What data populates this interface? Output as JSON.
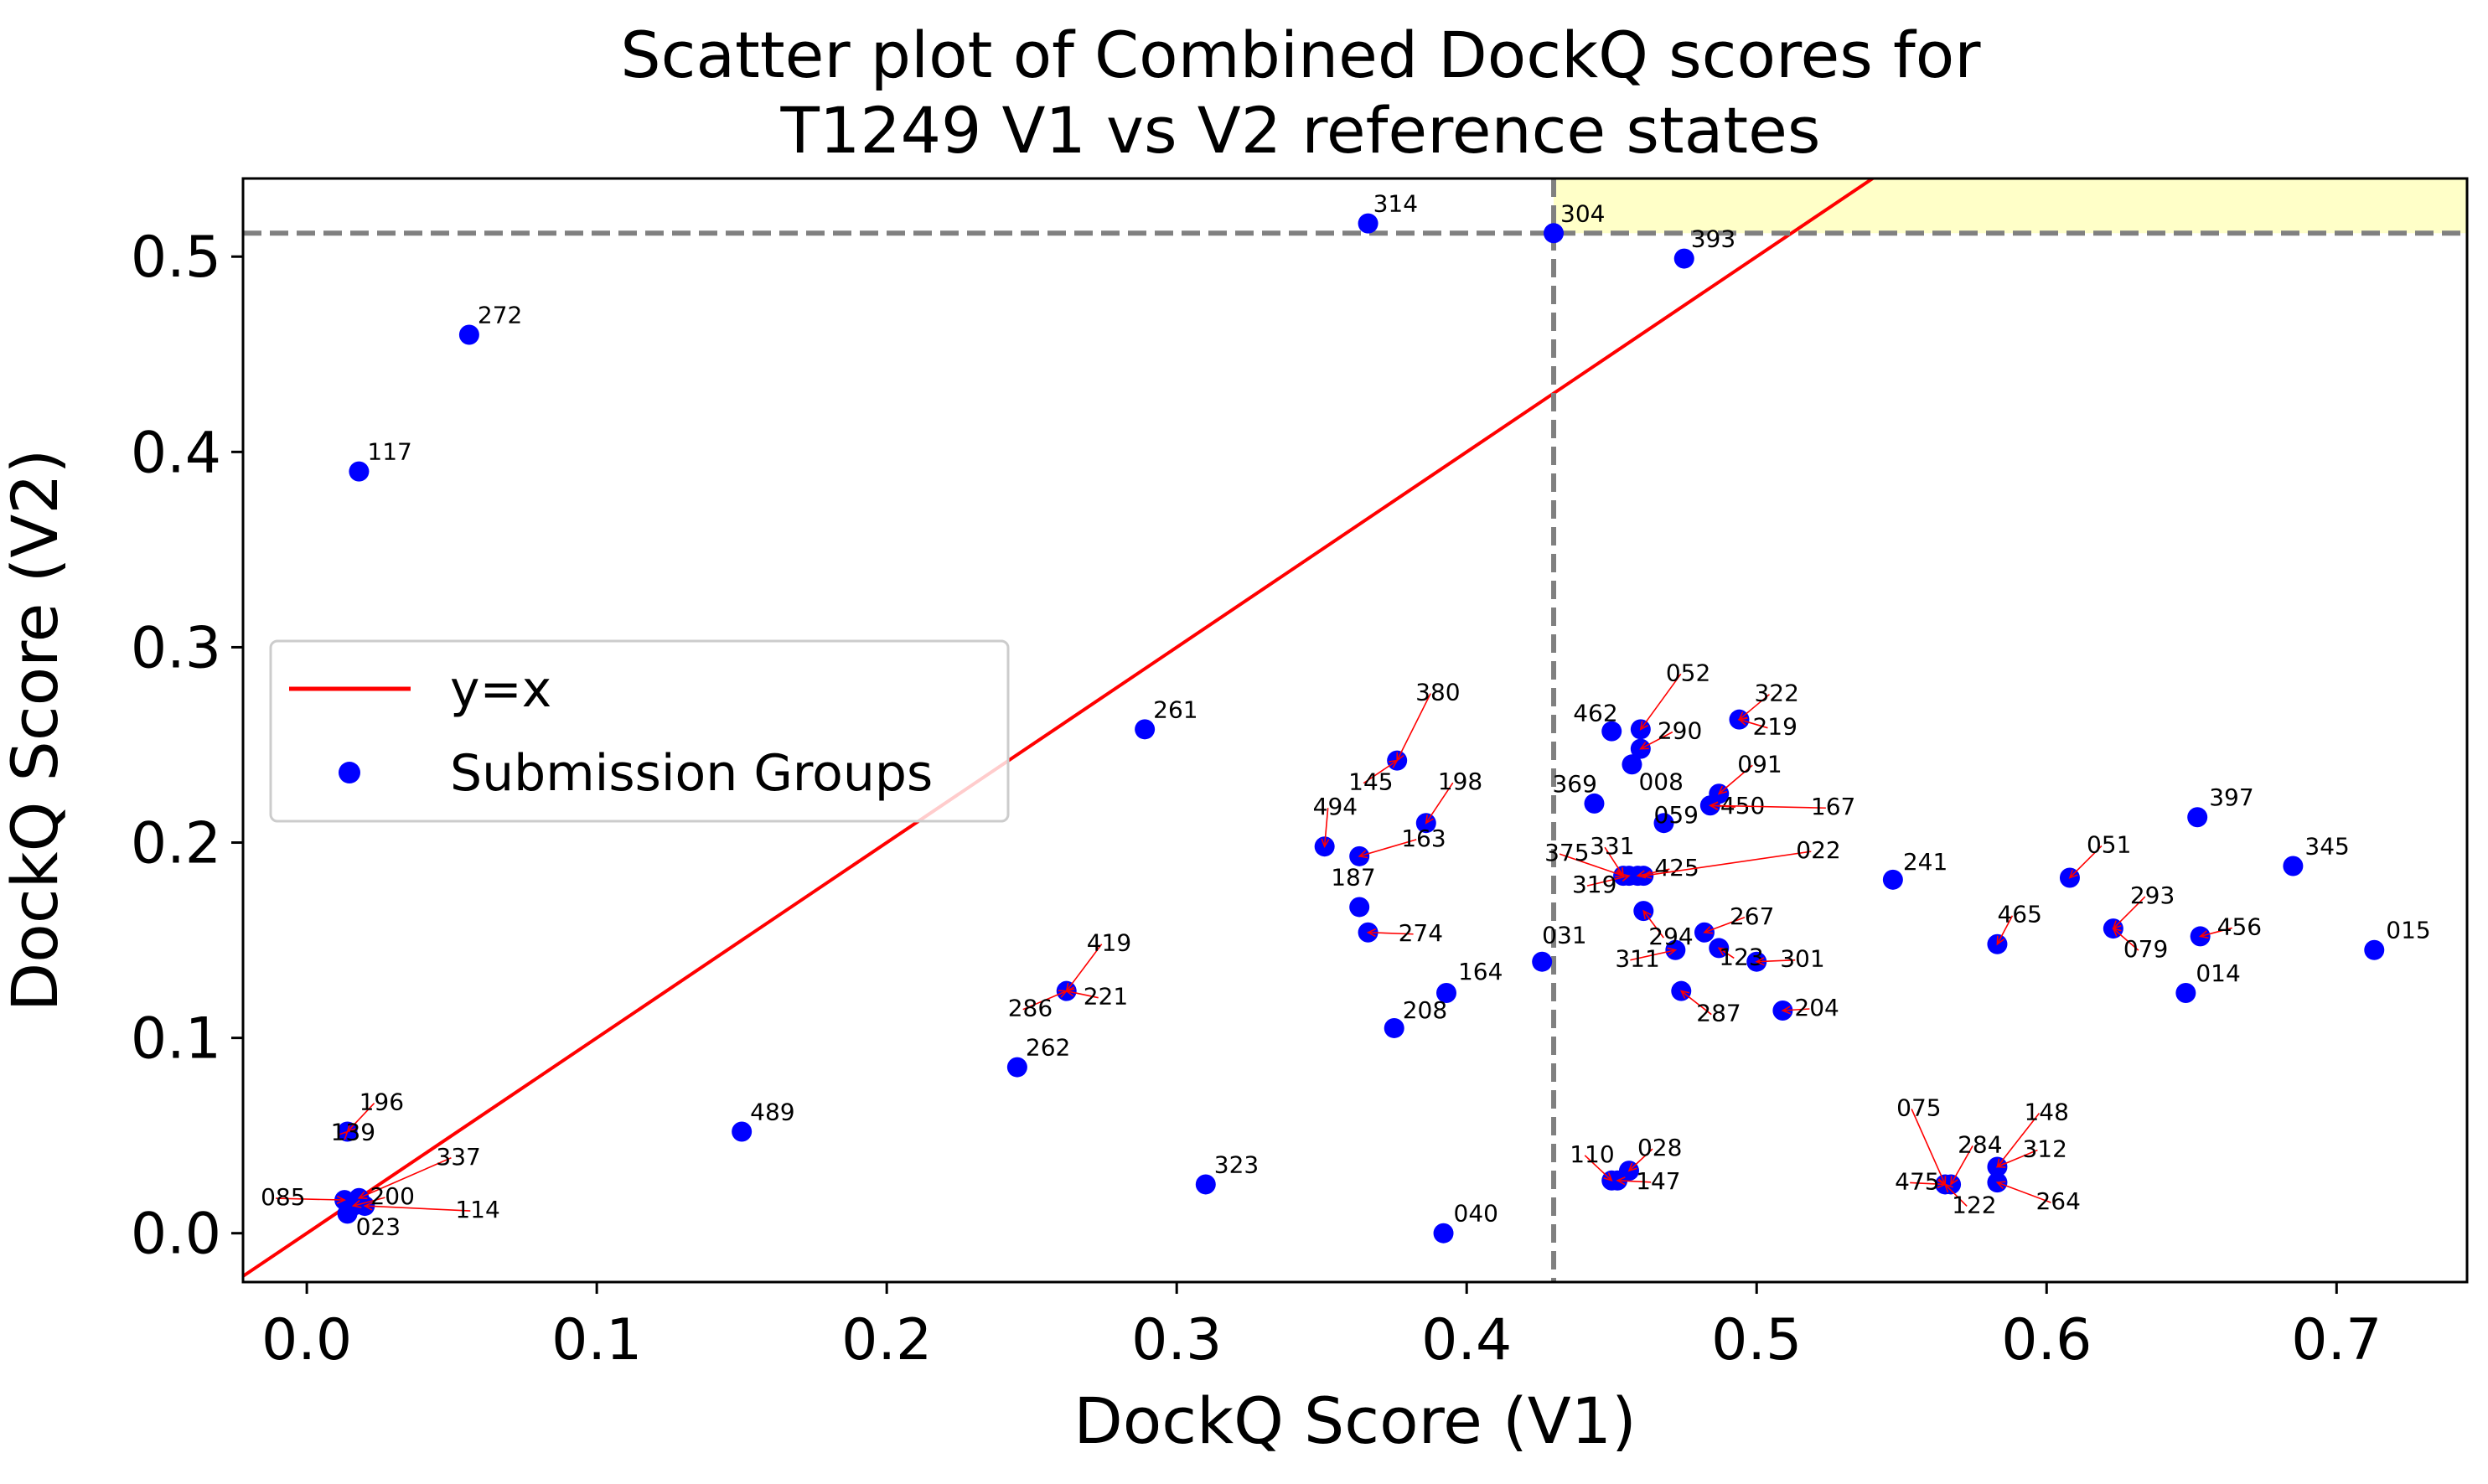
{
  "chart_data": {
    "type": "scatter",
    "title": "Scatter plot of Combined DockQ scores for\nT1249 V1 vs V2 reference states",
    "xlabel": "DockQ Score (V1)",
    "ylabel": "DockQ Score (V2)",
    "xlim": [
      -0.022,
      0.745
    ],
    "ylim": [
      -0.025,
      0.54
    ],
    "xticks": [
      "0.0",
      "0.1",
      "0.2",
      "0.3",
      "0.4",
      "0.5",
      "0.6",
      "0.7"
    ],
    "yticks": [
      "0.0",
      "0.1",
      "0.2",
      "0.3",
      "0.4",
      "0.5"
    ],
    "thresholds": {
      "x": 0.43,
      "y": 0.512
    },
    "colors": {
      "points": "#0000ff",
      "identity_line": "#ff0000",
      "threshold": "#808080",
      "highlight": "#ffffc8",
      "annotation_arrow": "#ff0000"
    },
    "legend": {
      "position": "center-left",
      "entries": [
        {
          "label": "y=x",
          "marker": "line",
          "color": "#ff0000"
        },
        {
          "label": "Submission Groups",
          "marker": "dot",
          "color": "#0000ff"
        }
      ]
    },
    "series": [
      {
        "name": "Submission Groups",
        "points": [
          {
            "label": "314",
            "x": 0.366,
            "y": 0.517
          },
          {
            "label": "304",
            "x": 0.43,
            "y": 0.512
          },
          {
            "label": "393",
            "x": 0.475,
            "y": 0.499
          },
          {
            "label": "272",
            "x": 0.056,
            "y": 0.46
          },
          {
            "label": "117",
            "x": 0.018,
            "y": 0.39
          },
          {
            "label": "261",
            "x": 0.289,
            "y": 0.258
          },
          {
            "label": "380",
            "x": 0.376,
            "y": 0.242
          },
          {
            "label": "145",
            "x": 0.376,
            "y": 0.242
          },
          {
            "label": "198",
            "x": 0.386,
            "y": 0.21
          },
          {
            "label": "494",
            "x": 0.351,
            "y": 0.198
          },
          {
            "label": "163",
            "x": 0.363,
            "y": 0.193
          },
          {
            "label": "187",
            "x": 0.363,
            "y": 0.167
          },
          {
            "label": "274",
            "x": 0.366,
            "y": 0.154
          },
          {
            "label": "164",
            "x": 0.393,
            "y": 0.123
          },
          {
            "label": "208",
            "x": 0.375,
            "y": 0.105
          },
          {
            "label": "040",
            "x": 0.392,
            "y": 0.0
          },
          {
            "label": "031",
            "x": 0.426,
            "y": 0.139
          },
          {
            "label": "419",
            "x": 0.262,
            "y": 0.124
          },
          {
            "label": "286",
            "x": 0.262,
            "y": 0.124
          },
          {
            "label": "221",
            "x": 0.262,
            "y": 0.124
          },
          {
            "label": "262",
            "x": 0.245,
            "y": 0.085
          },
          {
            "label": "323",
            "x": 0.31,
            "y": 0.025
          },
          {
            "label": "489",
            "x": 0.15,
            "y": 0.052
          },
          {
            "label": "196",
            "x": 0.014,
            "y": 0.052
          },
          {
            "label": "139",
            "x": 0.014,
            "y": 0.052
          },
          {
            "label": "337",
            "x": 0.018,
            "y": 0.018
          },
          {
            "label": "085",
            "x": 0.013,
            "y": 0.017
          },
          {
            "label": "200",
            "x": 0.016,
            "y": 0.014
          },
          {
            "label": "114",
            "x": 0.02,
            "y": 0.014
          },
          {
            "label": "023",
            "x": 0.014,
            "y": 0.01
          },
          {
            "label": "462",
            "x": 0.45,
            "y": 0.257
          },
          {
            "label": "052",
            "x": 0.46,
            "y": 0.258
          },
          {
            "label": "322",
            "x": 0.494,
            "y": 0.263
          },
          {
            "label": "219",
            "x": 0.494,
            "y": 0.263
          },
          {
            "label": "290",
            "x": 0.46,
            "y": 0.248
          },
          {
            "label": "008",
            "x": 0.457,
            "y": 0.24
          },
          {
            "label": "369",
            "x": 0.444,
            "y": 0.22
          },
          {
            "label": "091",
            "x": 0.487,
            "y": 0.225
          },
          {
            "label": "450",
            "x": 0.484,
            "y": 0.219
          },
          {
            "label": "167",
            "x": 0.484,
            "y": 0.219
          },
          {
            "label": "059",
            "x": 0.468,
            "y": 0.21
          },
          {
            "label": "375",
            "x": 0.454,
            "y": 0.183
          },
          {
            "label": "331",
            "x": 0.454,
            "y": 0.183
          },
          {
            "label": "319",
            "x": 0.456,
            "y": 0.183
          },
          {
            "label": "425",
            "x": 0.459,
            "y": 0.183
          },
          {
            "label": "022",
            "x": 0.461,
            "y": 0.183
          },
          {
            "label": "294",
            "x": 0.461,
            "y": 0.165
          },
          {
            "label": "267",
            "x": 0.482,
            "y": 0.154
          },
          {
            "label": "311",
            "x": 0.472,
            "y": 0.145
          },
          {
            "label": "123",
            "x": 0.487,
            "y": 0.146
          },
          {
            "label": "301",
            "x": 0.5,
            "y": 0.139
          },
          {
            "label": "287",
            "x": 0.474,
            "y": 0.124
          },
          {
            "label": "204",
            "x": 0.509,
            "y": 0.114
          },
          {
            "label": "110",
            "x": 0.45,
            "y": 0.027
          },
          {
            "label": "028",
            "x": 0.456,
            "y": 0.032
          },
          {
            "label": "147",
            "x": 0.452,
            "y": 0.027
          },
          {
            "label": "241",
            "x": 0.547,
            "y": 0.181
          },
          {
            "label": "051",
            "x": 0.608,
            "y": 0.182
          },
          {
            "label": "293",
            "x": 0.623,
            "y": 0.156
          },
          {
            "label": "079",
            "x": 0.623,
            "y": 0.156
          },
          {
            "label": "465",
            "x": 0.583,
            "y": 0.148
          },
          {
            "label": "397",
            "x": 0.652,
            "y": 0.213
          },
          {
            "label": "345",
            "x": 0.685,
            "y": 0.188
          },
          {
            "label": "456",
            "x": 0.653,
            "y": 0.152
          },
          {
            "label": "014",
            "x": 0.648,
            "y": 0.123
          },
          {
            "label": "015",
            "x": 0.713,
            "y": 0.145
          },
          {
            "label": "075",
            "x": 0.565,
            "y": 0.025
          },
          {
            "label": "284",
            "x": 0.567,
            "y": 0.025
          },
          {
            "label": "475",
            "x": 0.565,
            "y": 0.025
          },
          {
            "label": "122",
            "x": 0.565,
            "y": 0.025
          },
          {
            "label": "148",
            "x": 0.583,
            "y": 0.034
          },
          {
            "label": "312",
            "x": 0.583,
            "y": 0.034
          },
          {
            "label": "264",
            "x": 0.583,
            "y": 0.026
          }
        ]
      }
    ]
  }
}
